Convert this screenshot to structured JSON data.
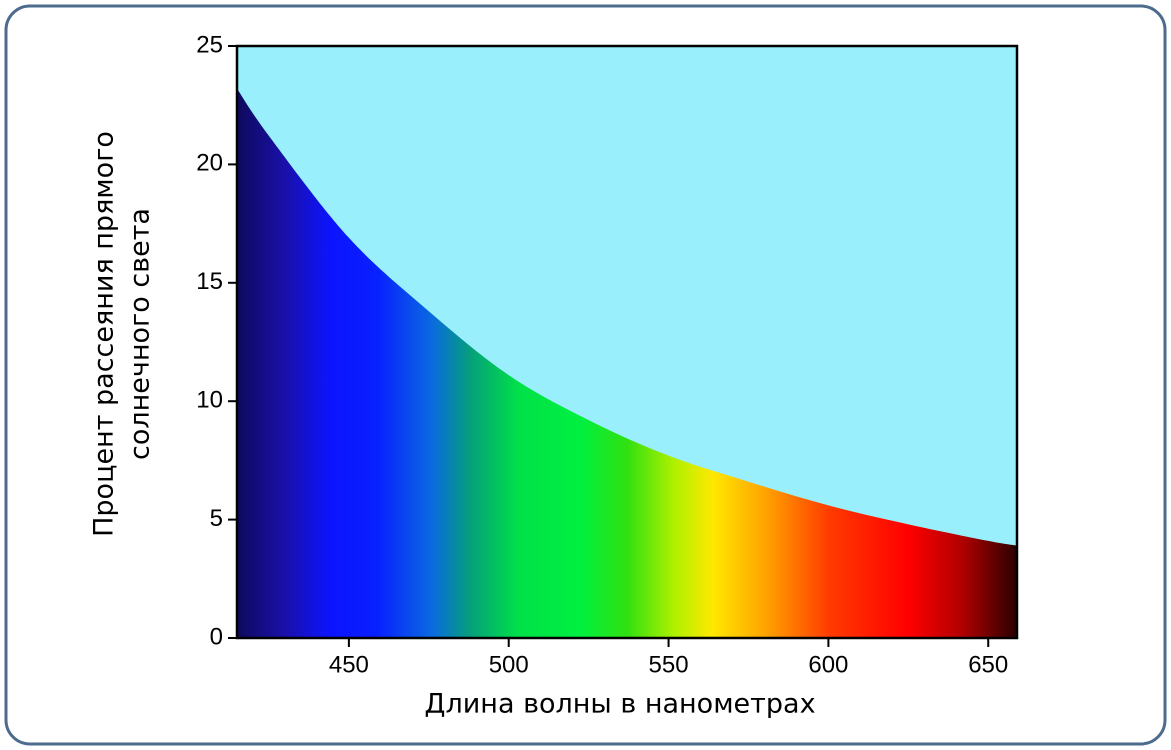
{
  "chart_data": {
    "type": "area",
    "ylabel": [
      "Процент рассеяния прямого",
      "солнечного света"
    ],
    "xlabel": "Длина волны в нанометрах",
    "x": [
      415,
      425,
      450,
      475,
      500,
      525,
      550,
      575,
      600,
      625,
      650,
      659
    ],
    "values": [
      23.2,
      21.2,
      16.9,
      13.8,
      11.1,
      9.2,
      7.7,
      6.6,
      5.6,
      4.8,
      4.1,
      3.9
    ],
    "xlim": [
      415,
      659
    ],
    "xticks": [
      450,
      500,
      550,
      600,
      650
    ],
    "ylim": [
      0,
      25
    ],
    "yticks": [
      0,
      5,
      10,
      15,
      20,
      25
    ],
    "background_color": "#99f0fc"
  }
}
